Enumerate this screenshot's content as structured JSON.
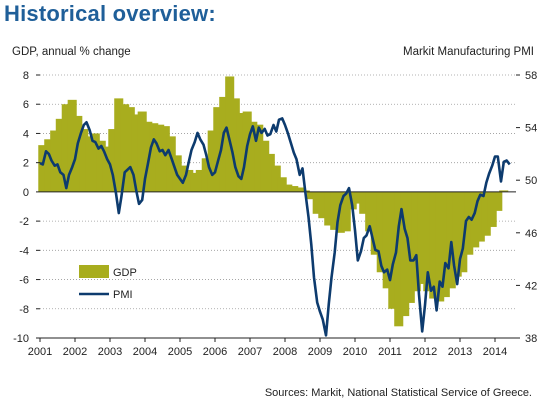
{
  "title": "Historical overview:",
  "source": "Sources: Markit, National Statistical Service of Greece.",
  "chart_data": {
    "type": "bar+line",
    "left_axis_label": "GDP, annual % change",
    "right_axis_label": "Markit Manufacturing PMI",
    "left_ylim": [
      -10,
      8
    ],
    "left_ticks": [
      8,
      6,
      4,
      2,
      0,
      -2,
      -4,
      -6,
      -8,
      -10
    ],
    "right_ylim": [
      38,
      58
    ],
    "right_ticks": [
      58,
      54,
      50,
      46,
      42,
      38
    ],
    "x_range": [
      2001,
      2014.6
    ],
    "x_ticks": [
      "2001",
      "2002",
      "2003",
      "2004",
      "2005",
      "2006",
      "2007",
      "2008",
      "2009",
      "2010",
      "2011",
      "2012",
      "2013",
      "2014"
    ],
    "legend": [
      {
        "name": "GDP",
        "color": "#a8ad1e",
        "kind": "bar"
      },
      {
        "name": "PMI",
        "color": "#0d3b6e",
        "kind": "line"
      }
    ],
    "gdp_series": {
      "name": "GDP",
      "x": [
        2001.08,
        2001.25,
        2001.42,
        2001.58,
        2001.75,
        2001.92,
        2002.08,
        2002.25,
        2002.42,
        2002.58,
        2002.75,
        2002.92,
        2003.08,
        2003.25,
        2003.42,
        2003.58,
        2003.75,
        2003.92,
        2004.08,
        2004.25,
        2004.42,
        2004.58,
        2004.75,
        2004.92,
        2005.08,
        2005.25,
        2005.42,
        2005.58,
        2005.75,
        2005.92,
        2006.08,
        2006.25,
        2006.42,
        2006.58,
        2006.75,
        2006.92,
        2007.08,
        2007.25,
        2007.42,
        2007.58,
        2007.75,
        2007.92,
        2008.08,
        2008.25,
        2008.42,
        2008.58,
        2008.75,
        2008.92,
        2009.08,
        2009.25,
        2009.42,
        2009.58,
        2009.75,
        2009.92,
        2010.08,
        2010.25,
        2010.42,
        2010.58,
        2010.75,
        2010.92,
        2011.08,
        2011.25,
        2011.42,
        2011.58,
        2011.75,
        2011.92,
        2012.08,
        2012.25,
        2012.42,
        2012.58,
        2012.75,
        2012.92,
        2013.08,
        2013.25,
        2013.42,
        2013.58,
        2013.75,
        2013.92,
        2014.08,
        2014.25
      ],
      "values": [
        3.2,
        3.6,
        4.2,
        5.0,
        6.0,
        6.3,
        5.2,
        4.3,
        3.8,
        4.0,
        3.5,
        3.1,
        4.3,
        6.4,
        6.0,
        5.8,
        5.3,
        5.5,
        4.8,
        4.7,
        4.6,
        4.5,
        3.8,
        2.5,
        1.8,
        1.5,
        1.3,
        1.5,
        2.3,
        4.2,
        5.8,
        6.5,
        7.9,
        6.4,
        5.4,
        5.5,
        4.8,
        4.6,
        3.5,
        2.6,
        1.8,
        1.0,
        0.5,
        0.4,
        0.3,
        0.1,
        -0.5,
        -1.5,
        -1.8,
        -2.3,
        -2.6,
        -2.8,
        -2.7,
        -1.2,
        -0.8,
        -1.5,
        -2.7,
        -4.3,
        -5.5,
        -6.6,
        -8.0,
        -9.2,
        -8.5,
        -7.6,
        -6.8,
        -6.3,
        -6.8,
        -7.3,
        -7.5,
        -7.2,
        -6.6,
        -5.8,
        -5.5,
        -4.3,
        -3.8,
        -3.4,
        -3.0,
        -2.4,
        -1.3,
        0.1
      ]
    },
    "pmi_series": {
      "name": "PMI",
      "x": [
        2001.0,
        2001.08,
        2001.17,
        2001.25,
        2001.33,
        2001.42,
        2001.5,
        2001.58,
        2001.67,
        2001.75,
        2001.83,
        2001.92,
        2002.0,
        2002.08,
        2002.17,
        2002.25,
        2002.33,
        2002.42,
        2002.5,
        2002.58,
        2002.67,
        2002.75,
        2002.83,
        2002.92,
        2003.0,
        2003.08,
        2003.17,
        2003.25,
        2003.33,
        2003.42,
        2003.5,
        2003.58,
        2003.67,
        2003.75,
        2003.83,
        2003.92,
        2004.0,
        2004.08,
        2004.17,
        2004.25,
        2004.33,
        2004.42,
        2004.5,
        2004.58,
        2004.67,
        2004.75,
        2004.83,
        2004.92,
        2005.0,
        2005.08,
        2005.17,
        2005.25,
        2005.33,
        2005.42,
        2005.5,
        2005.58,
        2005.67,
        2005.75,
        2005.83,
        2005.92,
        2006.0,
        2006.08,
        2006.17,
        2006.25,
        2006.33,
        2006.42,
        2006.5,
        2006.58,
        2006.67,
        2006.75,
        2006.83,
        2006.92,
        2007.0,
        2007.08,
        2007.17,
        2007.25,
        2007.33,
        2007.42,
        2007.5,
        2007.58,
        2007.67,
        2007.75,
        2007.83,
        2007.92,
        2008.0,
        2008.08,
        2008.17,
        2008.25,
        2008.33,
        2008.42,
        2008.5,
        2008.58,
        2008.67,
        2008.75,
        2008.83,
        2008.92,
        2009.0,
        2009.08,
        2009.17,
        2009.25,
        2009.33,
        2009.42,
        2009.5,
        2009.58,
        2009.67,
        2009.75,
        2009.83,
        2009.92,
        2010.0,
        2010.08,
        2010.17,
        2010.25,
        2010.33,
        2010.42,
        2010.5,
        2010.58,
        2010.67,
        2010.75,
        2010.83,
        2010.92,
        2011.0,
        2011.08,
        2011.17,
        2011.25,
        2011.33,
        2011.42,
        2011.5,
        2011.58,
        2011.67,
        2011.75,
        2011.83,
        2011.92,
        2012.0,
        2012.08,
        2012.17,
        2012.25,
        2012.33,
        2012.42,
        2012.5,
        2012.58,
        2012.67,
        2012.75,
        2012.83,
        2012.92,
        2013.0,
        2013.08,
        2013.17,
        2013.25,
        2013.33,
        2013.42,
        2013.5,
        2013.58,
        2013.67,
        2013.75,
        2013.83,
        2013.92,
        2014.0,
        2014.08,
        2014.17,
        2014.25,
        2014.33,
        2014.42
      ],
      "values": [
        51.3,
        51.2,
        52.2,
        52.0,
        51.5,
        51.1,
        51.2,
        50.6,
        50.4,
        49.4,
        50.4,
        51.0,
        51.6,
        52.8,
        53.6,
        54.2,
        54.4,
        53.8,
        53.0,
        52.9,
        52.4,
        52.6,
        52.2,
        51.6,
        51.2,
        50.4,
        49.0,
        47.5,
        48.8,
        50.6,
        50.8,
        51.0,
        50.4,
        49.2,
        48.2,
        48.5,
        50.1,
        51.2,
        52.5,
        53.1,
        52.8,
        52.2,
        52.3,
        51.9,
        52.3,
        51.7,
        51.1,
        50.4,
        50.1,
        49.8,
        50.4,
        51.4,
        52.3,
        52.9,
        53.6,
        53.1,
        52.7,
        51.9,
        51.0,
        50.4,
        50.6,
        51.4,
        52.3,
        53.6,
        54.0,
        53.0,
        52.1,
        51.0,
        50.3,
        50.1,
        51.0,
        52.6,
        53.5,
        54.1,
        53.0,
        54.0,
        53.6,
        53.9,
        53.4,
        53.5,
        54.2,
        53.7,
        54.6,
        54.7,
        54.2,
        53.6,
        52.8,
        52.1,
        51.6,
        50.4,
        50.9,
        49.1,
        47.2,
        45.1,
        42.6,
        40.7,
        40.0,
        39.4,
        38.2,
        40.6,
        42.6,
        44.5,
        46.8,
        48.1,
        48.8,
        49.0,
        49.4,
        48.1,
        46.2,
        43.9,
        44.6,
        45.6,
        45.8,
        46.5,
        45.6,
        44.7,
        44.6,
        43.5,
        43.0,
        43.2,
        42.4,
        43.6,
        44.5,
        46.5,
        47.8,
        46.3,
        45.6,
        43.9,
        43.9,
        44.3,
        41.3,
        38.5,
        40.5,
        43.0,
        41.6,
        41.9,
        40.1,
        42.3,
        41.9,
        43.7,
        43.3,
        45.3,
        43.5,
        42.1,
        44.0,
        44.8,
        46.9,
        47.2,
        47.0,
        47.5,
        48.4,
        48.9,
        48.8,
        49.8,
        50.5,
        51.1,
        51.8,
        51.8,
        49.9,
        51.4,
        51.5,
        51.2
      ]
    }
  }
}
